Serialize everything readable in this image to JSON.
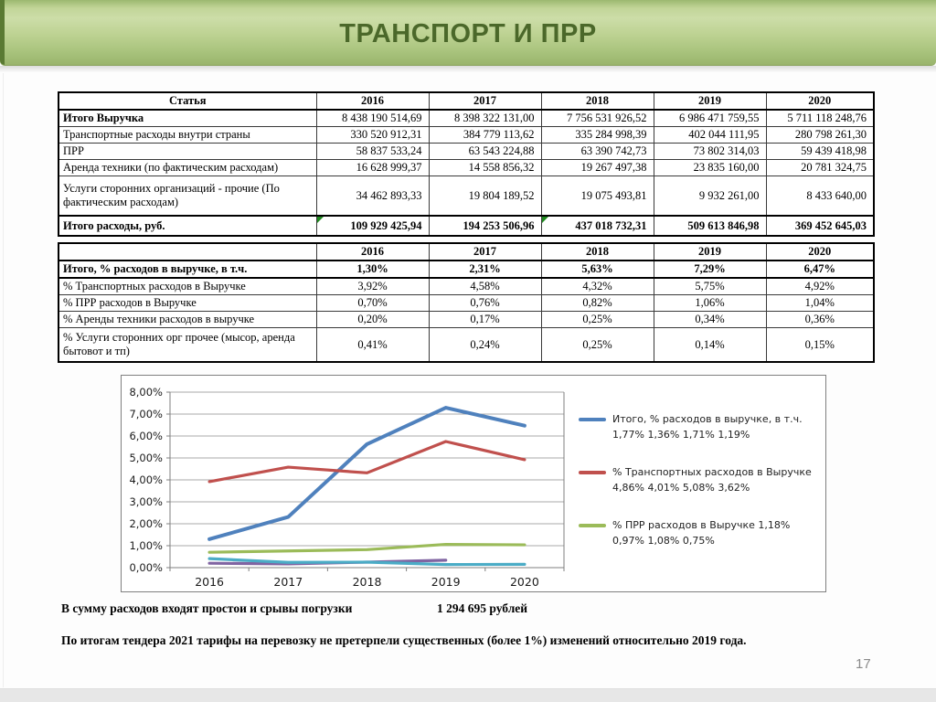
{
  "page": {
    "title": "ТРАНСПОРТ И ПРР",
    "page_number": "17"
  },
  "expenses_table": {
    "headers": [
      "Статья",
      "2016",
      "2017",
      "2018",
      "2019",
      "2020"
    ],
    "rows": [
      {
        "label": "Итого Выручка",
        "bold_label": true,
        "bold_values": false,
        "values": [
          "8 438 190 514,69",
          "8 398 322 131,00",
          "7 756 531 926,52",
          "6 986 471 759,55",
          "5 711 118 248,76"
        ]
      },
      {
        "label": "Транспортные расходы внутри страны",
        "values": [
          "330 520 912,31",
          "384 779 113,62",
          "335 284 998,39",
          "402 044 111,95",
          "280 798 261,30"
        ]
      },
      {
        "label": "ПРР",
        "values": [
          "58 837 533,24",
          "63 543 224,88",
          "63 390 742,73",
          "73 802 314,03",
          "59 439 418,98"
        ]
      },
      {
        "label": "Аренда техники (по фактическим расходам)",
        "values": [
          "16 628 999,37",
          "14 558 856,32",
          "19 267 497,38",
          "23 835 160,00",
          "20 781 324,75"
        ]
      },
      {
        "label": "Услуги сторонних организаций - прочие (По фактическим расходам)",
        "values": [
          "34 462 893,33",
          "19 804 189,52",
          "19 075 493,81",
          "9 932 261,00",
          "8 433 640,00"
        ]
      },
      {
        "label": "Итого расходы, руб.",
        "bold_label": true,
        "bold_values": true,
        "flag_cells": [
          0,
          2
        ],
        "values": [
          "109 929 425,94",
          "194 253 506,96",
          "437 018 732,31",
          "509 613 846,98",
          "369 452 645,03"
        ]
      }
    ]
  },
  "percent_table": {
    "headers": [
      "",
      "2016",
      "2017",
      "2018",
      "2019",
      "2020"
    ],
    "rows": [
      {
        "label": "Итого, % расходов в выручке, в т.ч.",
        "bold_label": true,
        "bold_values": true,
        "values": [
          "1,30%",
          "2,31%",
          "5,63%",
          "7,29%",
          "6,47%"
        ]
      },
      {
        "label": "% Транспортных расходов в Выручке",
        "values": [
          "3,92%",
          "4,58%",
          "4,32%",
          "5,75%",
          "4,92%"
        ]
      },
      {
        "label": "% ПРР расходов в Выручке",
        "values": [
          "0,70%",
          "0,76%",
          "0,82%",
          "1,06%",
          "1,04%"
        ]
      },
      {
        "label": "% Аренды техники расходов в выручке",
        "values": [
          "0,20%",
          "0,17%",
          "0,25%",
          "0,34%",
          "0,36%"
        ]
      },
      {
        "label": "% Услуги сторонних орг прочее (мысор, аренда бытовот и тп)",
        "values": [
          "0,41%",
          "0,24%",
          "0,25%",
          "0,14%",
          "0,15%"
        ]
      }
    ]
  },
  "chart_data": {
    "type": "line",
    "x": [
      "2016",
      "2017",
      "2018",
      "2019",
      "2020"
    ],
    "y_ticks": [
      "0,00%",
      "1,00%",
      "2,00%",
      "3,00%",
      "4,00%",
      "5,00%",
      "6,00%",
      "7,00%",
      "8,00%"
    ],
    "ylim": [
      0,
      8
    ],
    "grid": true,
    "legend_position": "right",
    "series": [
      {
        "name": "Итого, % расходов в выручке, в т.ч.",
        "legend_label": "Итого, % расходов в выручке, в т.ч. 1,77% 1,36% 1,71% 1,19%",
        "color": "#4F81BD",
        "values": [
          1.3,
          2.31,
          5.63,
          7.29,
          6.47
        ],
        "show_in_legend": true
      },
      {
        "name": "% Транспортных расходов в Выручке",
        "legend_label": "% Транспортных расходов в Выручке 4,86% 4,01% 5,08% 3,62%",
        "color": "#C0504D",
        "values": [
          3.92,
          4.58,
          4.32,
          5.75,
          4.92
        ],
        "show_in_legend": true
      },
      {
        "name": "% ПРР расходов в Выручке",
        "legend_label": "% ПРР расходов в Выручке 1,18% 0,97% 1,08% 0,75%",
        "color": "#9BBB59",
        "values": [
          0.7,
          0.76,
          0.82,
          1.06,
          1.04
        ],
        "show_in_legend": true
      },
      {
        "name": "% Аренды техники расходов в выручке",
        "color": "#8064A2",
        "values": [
          0.2,
          0.17,
          0.25,
          0.34,
          null
        ],
        "show_in_legend": false
      },
      {
        "name": "% Услуги сторонних орг прочее",
        "color": "#4BACC6",
        "values": [
          0.41,
          0.24,
          0.25,
          0.14,
          0.15
        ],
        "show_in_legend": false
      }
    ]
  },
  "notes": {
    "downtime_label": "В сумму расходов входят простои и срывы погрузки",
    "downtime_value": "1 294 695 рублей",
    "tender_note": "По итогам тендера 2021 тарифы на перевозку не претерпели существенных (более 1%) изменений относительно 2019 года."
  },
  "colors": {
    "banner_green": "#b6cc8c",
    "banner_accent": "#5a7a33",
    "title_text": "#4b682a",
    "flag_green": "#1f8a1f"
  }
}
